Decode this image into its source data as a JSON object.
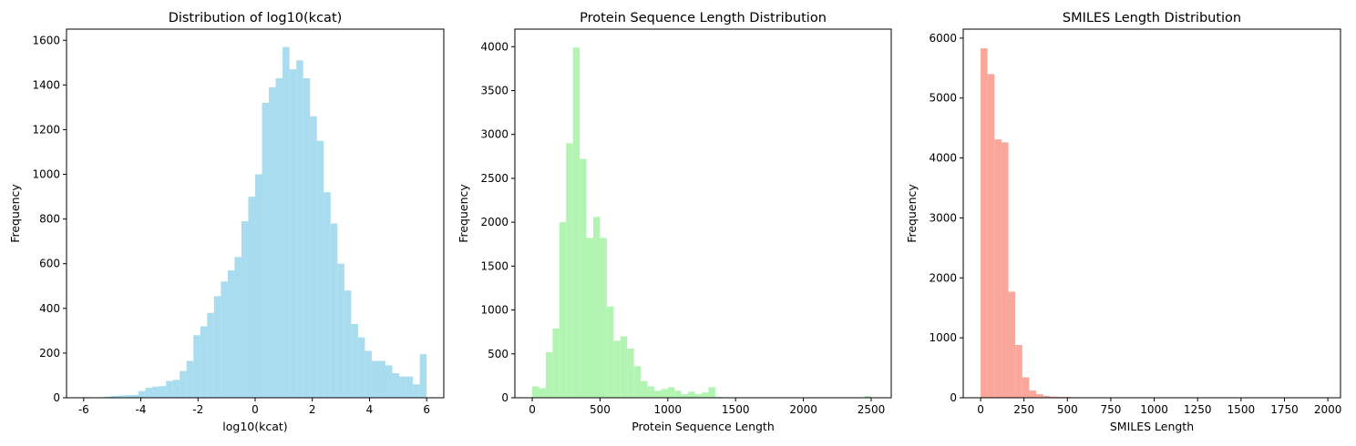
{
  "chart_data": [
    {
      "type": "histogram",
      "title": "Distribution of log10(kcat)",
      "x_label": "log10(kcat)",
      "y_label": "Frequency",
      "color": "#a8dcee",
      "bins": [
        -6,
        -5.76,
        -5.52,
        -5.28,
        -5.04,
        -4.8,
        -4.56,
        -4.32,
        -4.08,
        -3.84,
        -3.6,
        -3.36,
        -3.12,
        -2.88,
        -2.64,
        -2.4,
        -2.16,
        -1.92,
        -1.68,
        -1.44,
        -1.2,
        -0.96,
        -0.72,
        -0.48,
        -0.24,
        0,
        0.24,
        0.48,
        0.72,
        0.96,
        1.2,
        1.44,
        1.68,
        1.92,
        2.16,
        2.4,
        2.64,
        2.88,
        3.12,
        3.36,
        3.6,
        3.84,
        4.08,
        4.32,
        4.56,
        4.8,
        5.04,
        5.28,
        5.52,
        5.76,
        6
      ],
      "values": [
        3,
        2,
        2,
        5,
        8,
        10,
        12,
        12,
        30,
        45,
        50,
        52,
        75,
        80,
        120,
        165,
        280,
        320,
        380,
        455,
        520,
        570,
        630,
        790,
        900,
        1000,
        1320,
        1390,
        1430,
        1570,
        1470,
        1510,
        1430,
        1260,
        1150,
        920,
        780,
        600,
        480,
        330,
        270,
        210,
        165,
        165,
        145,
        110,
        95,
        95,
        60,
        195
      ],
      "xlim": [
        -6.6,
        6.6
      ],
      "xticks": [
        -6,
        -4,
        -2,
        0,
        2,
        4,
        6
      ],
      "ylim": [
        0,
        1650
      ],
      "yticks": [
        0,
        200,
        400,
        600,
        800,
        1000,
        1200,
        1400,
        1600
      ]
    },
    {
      "type": "histogram",
      "title": "Protein Sequence Length Distribution",
      "x_label": "Protein Sequence Length",
      "y_label": "Frequency",
      "color": "#b2f4b2",
      "bins": [
        0,
        50,
        100,
        150,
        200,
        250,
        300,
        350,
        400,
        450,
        500,
        550,
        600,
        650,
        700,
        750,
        800,
        850,
        900,
        950,
        1000,
        1050,
        1100,
        1150,
        1200,
        1250,
        1300,
        1350,
        1400,
        1450,
        1500,
        1550,
        1600,
        1650,
        1700,
        1750,
        1800,
        1850,
        1900,
        1950,
        2000,
        2050,
        2100,
        2150,
        2200,
        2250,
        2300,
        2350,
        2400,
        2450,
        2500
      ],
      "values": [
        130,
        110,
        520,
        790,
        2000,
        2900,
        3990,
        2720,
        1820,
        2060,
        1820,
        1040,
        650,
        700,
        560,
        360,
        190,
        130,
        80,
        100,
        120,
        80,
        40,
        70,
        40,
        60,
        120,
        10,
        5,
        3,
        5,
        2,
        2,
        1,
        1,
        1,
        1,
        1,
        1,
        1,
        1,
        1,
        1,
        1,
        1,
        1,
        1,
        1,
        1,
        20
      ],
      "xlim": [
        -128,
        2648
      ],
      "xticks": [
        0,
        500,
        1000,
        1500,
        2000,
        2500
      ],
      "ylim": [
        0,
        4200
      ],
      "yticks": [
        0,
        500,
        1000,
        1500,
        2000,
        2500,
        3000,
        3500,
        4000
      ]
    },
    {
      "type": "histogram",
      "title": "SMILES Length Distribution",
      "x_label": "SMILES Length",
      "y_label": "Frequency",
      "color": "#faa69a",
      "bins": [
        0,
        40,
        80,
        120,
        160,
        200,
        240,
        280,
        320,
        360,
        400,
        440,
        480,
        520,
        560,
        600,
        640,
        680,
        720,
        760,
        800,
        840,
        880,
        920,
        960,
        1000,
        1040,
        1080,
        1120,
        1160,
        1200,
        1240,
        1280,
        1320,
        1360,
        1400,
        1440,
        1480,
        1520,
        1560,
        1600,
        1640,
        1680,
        1720,
        1760,
        1800,
        1840,
        1880,
        1920,
        1960,
        2000
      ],
      "values": [
        5830,
        5400,
        4310,
        4260,
        1770,
        880,
        340,
        120,
        60,
        30,
        20,
        15,
        15,
        10,
        8,
        5,
        3,
        2,
        1,
        1,
        1,
        0,
        1,
        0,
        0,
        0,
        0,
        0,
        0,
        0,
        0,
        0,
        0,
        0,
        0,
        0,
        0,
        0,
        0,
        0,
        0,
        0,
        0,
        0,
        0,
        0,
        0,
        0,
        0,
        1
      ],
      "xlim": [
        -100,
        2073
      ],
      "xticks": [
        0,
        250,
        500,
        750,
        1000,
        1250,
        1500,
        1750,
        2000
      ],
      "ylim": [
        0,
        6150
      ],
      "yticks": [
        0,
        1000,
        2000,
        3000,
        4000,
        5000,
        6000
      ]
    }
  ]
}
